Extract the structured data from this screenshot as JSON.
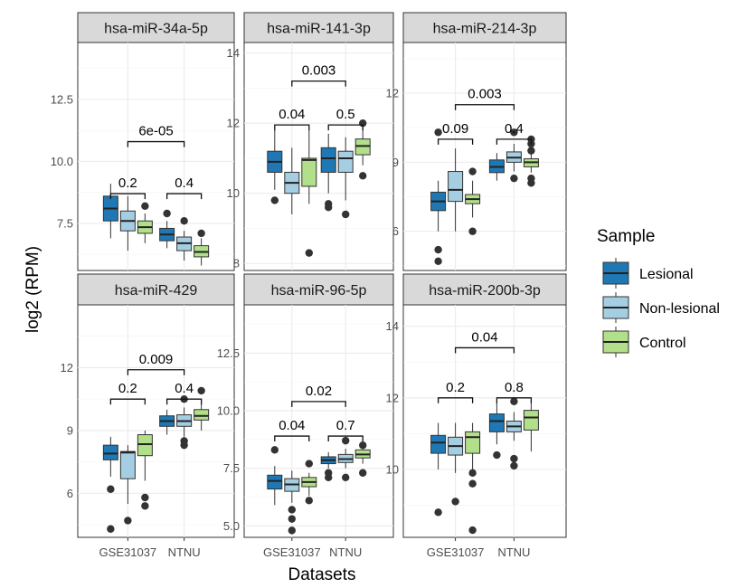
{
  "chart_data": {
    "type": "boxplot",
    "xlabel": "Datasets",
    "ylabel": "log2 (RPM)",
    "categories": [
      "GSE31037",
      "NTNU"
    ],
    "groups": [
      "Lesional",
      "Non-lesional",
      "Control"
    ],
    "colors": {
      "Lesional": "#1f78b4",
      "Non-lesional": "#a6cee3",
      "Control": "#b2df8a"
    },
    "legend": {
      "title": "Sample",
      "placement": "right"
    },
    "grid": true,
    "facets": [
      {
        "title": "hsa-miR-34a-5p",
        "ylim": [
          5.6,
          14.8
        ],
        "yticks": [
          7.5,
          10.0,
          12.5
        ],
        "ytick_labels": [
          "7.5",
          "10.0",
          "12.5"
        ],
        "boxes": [
          {
            "category": "GSE31037",
            "group": "Lesional",
            "min": 6.9,
            "q1": 7.6,
            "median": 8.1,
            "q3": 8.6,
            "max": 9.1,
            "outliers": []
          },
          {
            "category": "GSE31037",
            "group": "Non-lesional",
            "min": 6.4,
            "q1": 7.2,
            "median": 7.6,
            "q3": 8.0,
            "max": 8.6,
            "outliers": []
          },
          {
            "category": "GSE31037",
            "group": "Control",
            "min": 6.7,
            "q1": 7.1,
            "median": 7.35,
            "q3": 7.6,
            "max": 7.9,
            "outliers": [
              8.2
            ]
          },
          {
            "category": "NTNU",
            "group": "Lesional",
            "min": 6.5,
            "q1": 6.8,
            "median": 7.05,
            "q3": 7.3,
            "max": 7.6,
            "outliers": [
              7.9
            ]
          },
          {
            "category": "NTNU",
            "group": "Non-lesional",
            "min": 6.0,
            "q1": 6.4,
            "median": 6.7,
            "q3": 6.95,
            "max": 7.2,
            "outliers": [
              7.6
            ]
          },
          {
            "category": "NTNU",
            "group": "Control",
            "min": 5.8,
            "q1": 6.15,
            "median": 6.35,
            "q3": 6.6,
            "max": 6.9,
            "outliers": [
              7.1
            ]
          }
        ],
        "annotations": [
          {
            "label": "0.2",
            "category": "GSE31037",
            "y": 8.7
          },
          {
            "label": "0.4",
            "category": "NTNU",
            "y": 8.7
          },
          {
            "label": "6e-05",
            "category": "both",
            "y": 10.8
          }
        ]
      },
      {
        "title": "hsa-miR-141-3p",
        "ylim": [
          7.8,
          14.3
        ],
        "yticks": [
          8,
          10,
          12,
          14
        ],
        "ytick_labels": [
          "8",
          "10",
          "12",
          "14"
        ],
        "boxes": [
          {
            "category": "GSE31037",
            "group": "Lesional",
            "min": 10.1,
            "q1": 10.6,
            "median": 10.9,
            "q3": 11.2,
            "max": 11.8,
            "outliers": [
              9.8
            ]
          },
          {
            "category": "GSE31037",
            "group": "Non-lesional",
            "min": 9.4,
            "q1": 10.0,
            "median": 10.3,
            "q3": 10.6,
            "max": 11.3,
            "outliers": []
          },
          {
            "category": "GSE31037",
            "group": "Control",
            "min": 9.7,
            "q1": 10.2,
            "median": 10.95,
            "q3": 11.0,
            "max": 11.8,
            "outliers": [
              8.3
            ]
          },
          {
            "category": "NTNU",
            "group": "Lesional",
            "min": 10.0,
            "q1": 10.6,
            "median": 11.0,
            "q3": 11.3,
            "max": 11.7,
            "outliers": [
              9.6,
              9.7
            ]
          },
          {
            "category": "NTNU",
            "group": "Non-lesional",
            "min": 9.8,
            "q1": 10.6,
            "median": 11.0,
            "q3": 11.2,
            "max": 11.6,
            "outliers": [
              9.4
            ]
          },
          {
            "category": "NTNU",
            "group": "Control",
            "min": 10.8,
            "q1": 11.1,
            "median": 11.35,
            "q3": 11.55,
            "max": 11.9,
            "outliers": [
              12.0,
              10.5
            ]
          }
        ],
        "annotations": [
          {
            "label": "0.04",
            "category": "GSE31037",
            "y": 11.95
          },
          {
            "label": "0.5",
            "category": "NTNU",
            "y": 11.95
          },
          {
            "label": "0.003",
            "category": "both",
            "y": 13.2
          }
        ]
      },
      {
        "title": "hsa-miR-214-3p",
        "ylim": [
          4.3,
          14.2
        ],
        "yticks": [
          6,
          9,
          12
        ],
        "ytick_labels": [
          "6",
          "9",
          "12"
        ],
        "boxes": [
          {
            "category": "GSE31037",
            "group": "Lesional",
            "min": 6.0,
            "q1": 6.9,
            "median": 7.3,
            "q3": 7.7,
            "max": 8.2,
            "outliers": [
              10.3,
              5.2,
              4.7
            ]
          },
          {
            "category": "GSE31037",
            "group": "Non-lesional",
            "min": 6.0,
            "q1": 7.3,
            "median": 7.8,
            "q3": 8.6,
            "max": 9.6,
            "outliers": []
          },
          {
            "category": "GSE31037",
            "group": "Control",
            "min": 6.6,
            "q1": 7.2,
            "median": 7.4,
            "q3": 7.6,
            "max": 8.2,
            "outliers": [
              8.6,
              6.0
            ]
          },
          {
            "category": "NTNU",
            "group": "Lesional",
            "min": 8.2,
            "q1": 8.55,
            "median": 8.8,
            "q3": 9.1,
            "max": 9.4,
            "outliers": []
          },
          {
            "category": "NTNU",
            "group": "Non-lesional",
            "min": 8.6,
            "q1": 9.0,
            "median": 9.2,
            "q3": 9.45,
            "max": 9.8,
            "outliers": [
              10.3,
              8.3
            ]
          },
          {
            "category": "NTNU",
            "group": "Control",
            "min": 8.55,
            "q1": 8.8,
            "median": 9.0,
            "q3": 9.15,
            "max": 9.4,
            "outliers": [
              10.0,
              9.8,
              9.5,
              8.3,
              8.1
            ]
          }
        ],
        "annotations": [
          {
            "label": "0.09",
            "category": "GSE31037",
            "y": 10.0
          },
          {
            "label": "0.4",
            "category": "NTNU",
            "y": 10.0
          },
          {
            "label": "0.003",
            "category": "both",
            "y": 11.5
          }
        ]
      },
      {
        "title": "hsa-miR-429",
        "ylim": [
          3.9,
          15.0
        ],
        "yticks": [
          6,
          9,
          12
        ],
        "ytick_labels": [
          "6",
          "9",
          "12"
        ],
        "boxes": [
          {
            "category": "GSE31037",
            "group": "Lesional",
            "min": 6.8,
            "q1": 7.6,
            "median": 7.9,
            "q3": 8.3,
            "max": 8.7,
            "outliers": [
              6.2,
              4.3
            ]
          },
          {
            "category": "GSE31037",
            "group": "Non-lesional",
            "min": 5.5,
            "q1": 6.7,
            "median": 7.95,
            "q3": 8.0,
            "max": 8.3,
            "outliers": [
              4.7
            ]
          },
          {
            "category": "GSE31037",
            "group": "Control",
            "min": 6.6,
            "q1": 7.8,
            "median": 8.35,
            "q3": 8.8,
            "max": 9.0,
            "outliers": [
              5.8,
              5.4
            ]
          },
          {
            "category": "NTNU",
            "group": "Lesional",
            "min": 8.8,
            "q1": 9.2,
            "median": 9.45,
            "q3": 9.7,
            "max": 10.0,
            "outliers": []
          },
          {
            "category": "NTNU",
            "group": "Non-lesional",
            "min": 8.7,
            "q1": 9.2,
            "median": 9.45,
            "q3": 9.75,
            "max": 10.1,
            "outliers": [
              10.5,
              8.5,
              8.3
            ]
          },
          {
            "category": "NTNU",
            "group": "Control",
            "min": 9.0,
            "q1": 9.5,
            "median": 9.7,
            "q3": 10.0,
            "max": 10.5,
            "outliers": [
              10.9
            ]
          }
        ],
        "annotations": [
          {
            "label": "0.2",
            "category": "GSE31037",
            "y": 10.5
          },
          {
            "label": "0.4",
            "category": "NTNU",
            "y": 10.5
          },
          {
            "label": "0.009",
            "category": "both",
            "y": 11.9
          }
        ]
      },
      {
        "title": "hsa-miR-96-5p",
        "ylim": [
          4.5,
          14.6
        ],
        "yticks": [
          5.0,
          7.5,
          10.0,
          12.5
        ],
        "ytick_labels": [
          "5.0",
          "7.5",
          "10.0",
          "12.5"
        ],
        "boxes": [
          {
            "category": "GSE31037",
            "group": "Lesional",
            "min": 5.9,
            "q1": 6.6,
            "median": 6.95,
            "q3": 7.2,
            "max": 7.6,
            "outliers": [
              8.3
            ]
          },
          {
            "category": "GSE31037",
            "group": "Non-lesional",
            "min": 6.0,
            "q1": 6.5,
            "median": 6.8,
            "q3": 7.05,
            "max": 7.4,
            "outliers": [
              5.7,
              5.3,
              4.8
            ]
          },
          {
            "category": "GSE31037",
            "group": "Control",
            "min": 6.3,
            "q1": 6.7,
            "median": 6.9,
            "q3": 7.1,
            "max": 7.3,
            "outliers": [
              7.7,
              6.1
            ]
          },
          {
            "category": "NTNU",
            "group": "Lesional",
            "min": 7.5,
            "q1": 7.7,
            "median": 7.85,
            "q3": 8.0,
            "max": 8.2,
            "outliers": [
              7.3,
              7.1
            ]
          },
          {
            "category": "NTNU",
            "group": "Non-lesional",
            "min": 7.5,
            "q1": 7.75,
            "median": 7.9,
            "q3": 8.1,
            "max": 8.35,
            "outliers": [
              8.7,
              7.1
            ]
          },
          {
            "category": "NTNU",
            "group": "Control",
            "min": 7.7,
            "q1": 7.95,
            "median": 8.1,
            "q3": 8.3,
            "max": 8.45,
            "outliers": [
              8.5,
              7.3
            ]
          }
        ],
        "annotations": [
          {
            "label": "0.04",
            "category": "GSE31037",
            "y": 8.9
          },
          {
            "label": "0.7",
            "category": "NTNU",
            "y": 8.9
          },
          {
            "label": "0.02",
            "category": "both",
            "y": 10.4
          }
        ]
      },
      {
        "title": "hsa-miR-200b-3p",
        "ylim": [
          8.1,
          14.6
        ],
        "yticks": [
          10,
          12,
          14
        ],
        "ytick_labels": [
          "10",
          "12",
          "14"
        ],
        "boxes": [
          {
            "category": "GSE31037",
            "group": "Lesional",
            "min": 10.0,
            "q1": 10.45,
            "median": 10.75,
            "q3": 10.95,
            "max": 11.3,
            "outliers": [
              8.8
            ]
          },
          {
            "category": "GSE31037",
            "group": "Non-lesional",
            "min": 9.9,
            "q1": 10.4,
            "median": 10.65,
            "q3": 10.9,
            "max": 11.3,
            "outliers": [
              9.1
            ]
          },
          {
            "category": "GSE31037",
            "group": "Control",
            "min": 10.0,
            "q1": 10.45,
            "median": 10.9,
            "q3": 11.05,
            "max": 11.3,
            "outliers": [
              9.9,
              9.6,
              8.3
            ]
          },
          {
            "category": "NTNU",
            "group": "Lesional",
            "min": 10.7,
            "q1": 11.05,
            "median": 11.35,
            "q3": 11.55,
            "max": 11.9,
            "outliers": [
              10.4
            ]
          },
          {
            "category": "NTNU",
            "group": "Non-lesional",
            "min": 10.8,
            "q1": 11.05,
            "median": 11.2,
            "q3": 11.35,
            "max": 11.6,
            "outliers": [
              11.9,
              10.3,
              10.1
            ]
          },
          {
            "category": "NTNU",
            "group": "Control",
            "min": 10.5,
            "q1": 11.1,
            "median": 11.45,
            "q3": 11.65,
            "max": 11.95,
            "outliers": []
          }
        ],
        "annotations": [
          {
            "label": "0.2",
            "category": "GSE31037",
            "y": 12.0
          },
          {
            "label": "0.8",
            "category": "NTNU",
            "y": 12.0
          },
          {
            "label": "0.04",
            "category": "both",
            "y": 13.4
          }
        ]
      }
    ]
  }
}
